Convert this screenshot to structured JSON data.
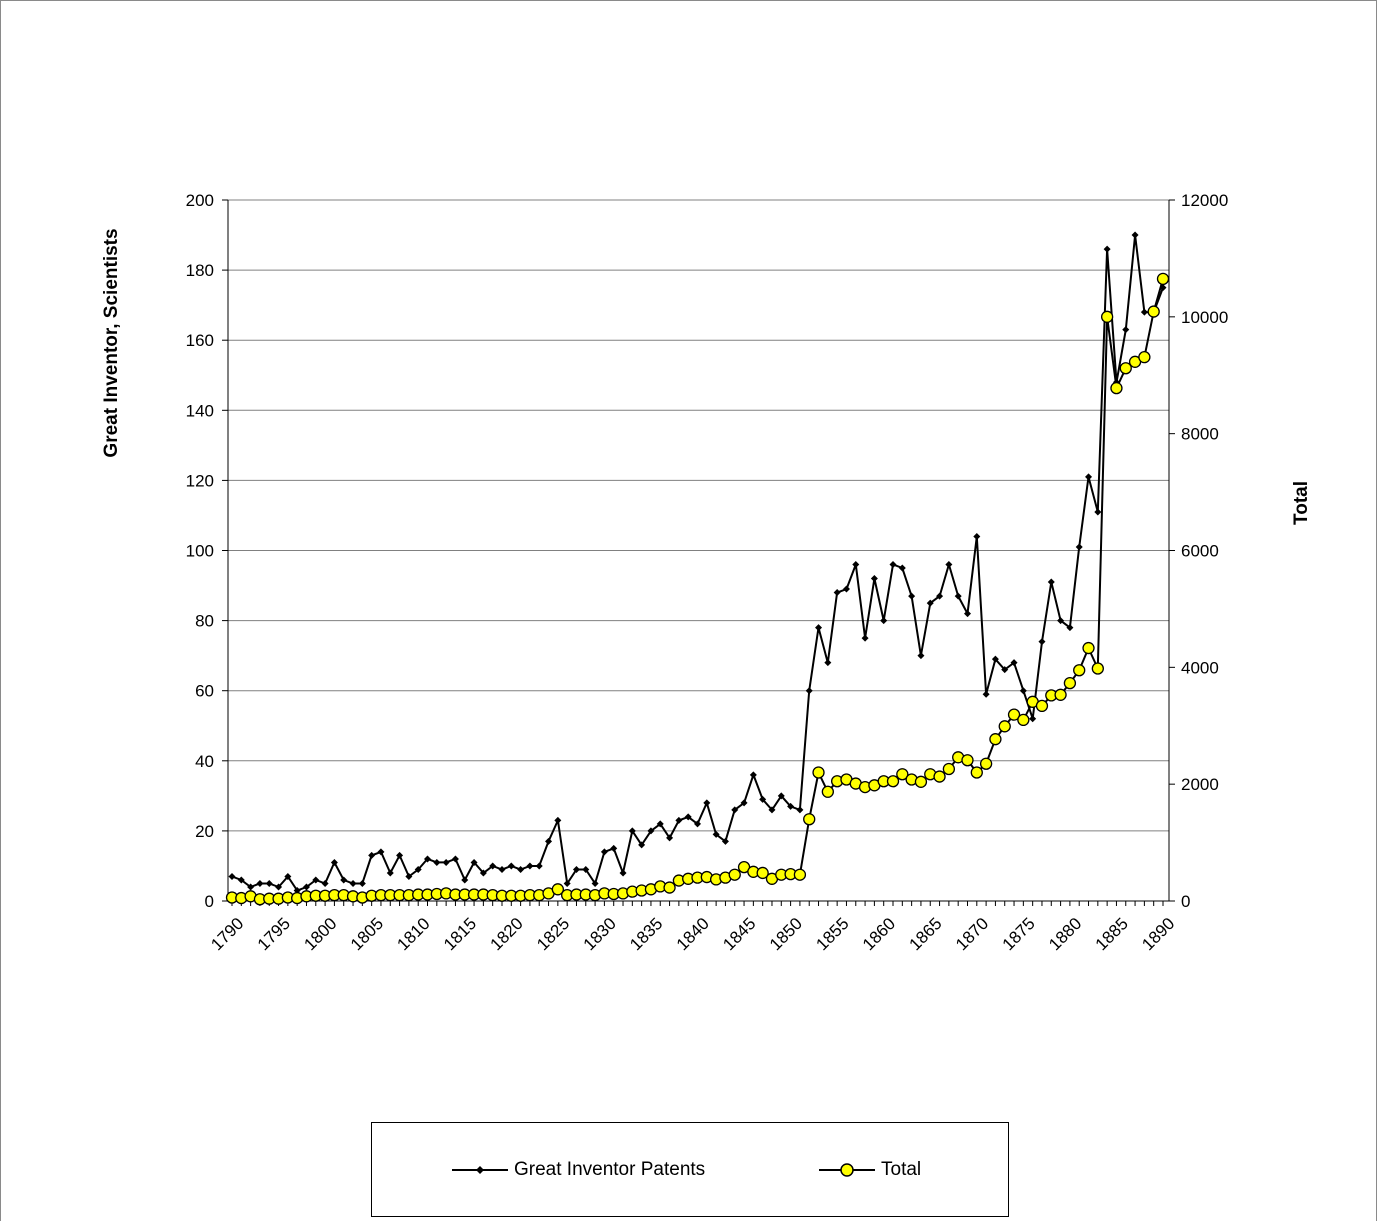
{
  "chart_data": {
    "type": "line",
    "ylabel_left": "Great Inventor, Scientists",
    "ylabel_right": "Total",
    "xlabel": "",
    "x_start": 1790,
    "x_end": 1890,
    "x_tick_labels": [
      "1790",
      "1795",
      "1800",
      "1805",
      "1810",
      "1815",
      "1820",
      "1825",
      "1830",
      "1835",
      "1840",
      "1845",
      "1850",
      "1855",
      "1860",
      "1865",
      "1870",
      "1875",
      "1880",
      "1885",
      "1890"
    ],
    "ylim_left": [
      0,
      200
    ],
    "y_ticks_left": [
      "0",
      "20",
      "40",
      "60",
      "80",
      "100",
      "120",
      "140",
      "160",
      "180",
      "200"
    ],
    "ylim_right": [
      0,
      12000
    ],
    "y_ticks_right": [
      "0",
      "2000",
      "4000",
      "6000",
      "8000",
      "10000",
      "12000"
    ],
    "grid": "horizontal",
    "legend_position": "bottom",
    "series": [
      {
        "name": "Great Inventor Patents",
        "axis": "left",
        "color": "#000000",
        "marker": "diamond",
        "values": [
          7,
          6,
          4,
          5,
          5,
          4,
          7,
          3,
          4,
          6,
          5,
          11,
          6,
          5,
          5,
          13,
          14,
          8,
          13,
          7,
          9,
          12,
          11,
          11,
          12,
          6,
          11,
          8,
          10,
          9,
          10,
          9,
          10,
          10,
          17,
          23,
          5,
          9,
          9,
          5,
          14,
          15,
          8,
          20,
          16,
          20,
          22,
          18,
          23,
          24,
          22,
          28,
          19,
          17,
          26,
          28,
          36,
          29,
          26,
          30,
          27,
          26,
          60,
          78,
          68,
          88,
          89,
          96,
          75,
          92,
          80,
          96,
          95,
          87,
          70,
          85,
          87,
          96,
          87,
          82,
          104,
          59,
          69,
          66,
          68,
          60,
          52,
          74,
          91,
          80,
          78,
          101,
          121,
          111,
          186,
          148,
          163,
          190,
          168,
          168,
          175
        ]
      },
      {
        "name": "Total",
        "axis": "right",
        "color": "#ffff00",
        "marker": "circle",
        "values": [
          60,
          50,
          80,
          30,
          40,
          40,
          60,
          50,
          80,
          90,
          90,
          100,
          100,
          80,
          60,
          90,
          100,
          100,
          100,
          100,
          110,
          110,
          120,
          130,
          110,
          110,
          110,
          110,
          100,
          90,
          90,
          90,
          100,
          100,
          130,
          200,
          100,
          110,
          110,
          100,
          130,
          120,
          130,
          160,
          180,
          200,
          250,
          230,
          350,
          380,
          400,
          410,
          370,
          400,
          450,
          580,
          500,
          480,
          380,
          450,
          460,
          450,
          1400,
          2200,
          1870,
          2050,
          2080,
          2010,
          1950,
          1980,
          2050,
          2050,
          2170,
          2080,
          2040,
          2170,
          2130,
          2260,
          2460,
          2410,
          2200,
          2350,
          2770,
          2990,
          3190,
          3100,
          3410,
          3340,
          3520,
          3530,
          3730,
          3950,
          4330,
          3980,
          10000,
          8780,
          9120,
          9230,
          9310,
          10090,
          10650
        ]
      }
    ]
  }
}
